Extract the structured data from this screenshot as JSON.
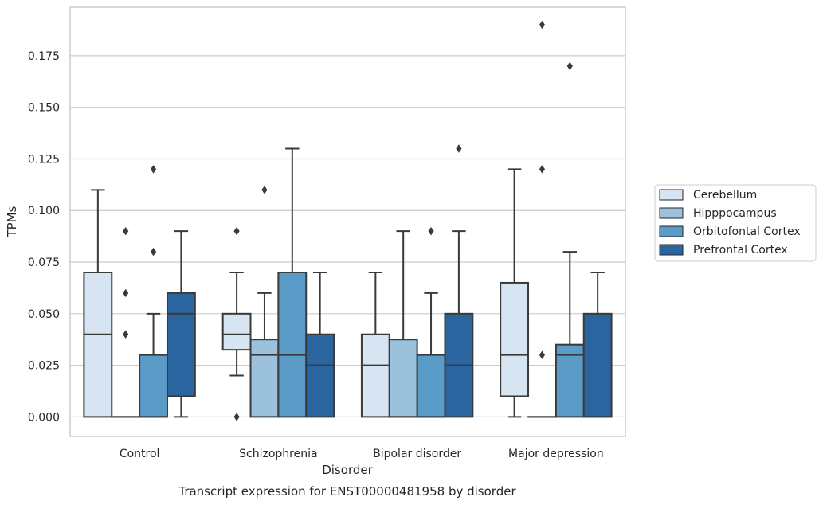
{
  "chart_data": {
    "type": "box",
    "caption": "Transcript expression for ENST00000481958 by disorder",
    "xlabel": "Disorder",
    "ylabel": "TPMs",
    "ylim": [
      -0.0095,
      0.1985
    ],
    "yticks": [
      0.0,
      0.025,
      0.05,
      0.075,
      0.1,
      0.125,
      0.15,
      0.175
    ],
    "ytick_labels": [
      "0.000",
      "0.025",
      "0.050",
      "0.075",
      "0.100",
      "0.125",
      "0.150",
      "0.175"
    ],
    "grid": "horizontal",
    "legend_position": "right",
    "categories": [
      "Control",
      "Schizophrenia",
      "Bipolar disorder",
      "Major depression"
    ],
    "series": [
      {
        "name": "Cerebellum",
        "color": "#d7e5f3",
        "boxes": [
          {
            "whislo": 0.0,
            "q1": 0.0,
            "med": 0.04,
            "q3": 0.07,
            "whishi": 0.11,
            "fliers": []
          },
          {
            "whislo": 0.02,
            "q1": 0.0325,
            "med": 0.04,
            "q3": 0.05,
            "whishi": 0.07,
            "fliers": [
              0.0,
              0.09
            ]
          },
          {
            "whislo": 0.0,
            "q1": 0.0,
            "med": 0.025,
            "q3": 0.04,
            "whishi": 0.07,
            "fliers": []
          },
          {
            "whislo": 0.0,
            "q1": 0.01,
            "med": 0.03,
            "q3": 0.065,
            "whishi": 0.12,
            "fliers": []
          }
        ]
      },
      {
        "name": "Hipppocampus",
        "color": "#9bc1dc",
        "boxes": [
          {
            "whislo": 0.0,
            "q1": 0.0,
            "med": 0.0,
            "q3": 0.0,
            "whishi": 0.0,
            "fliers": [
              0.04,
              0.06,
              0.09
            ]
          },
          {
            "whislo": 0.0,
            "q1": 0.0,
            "med": 0.03,
            "q3": 0.0375,
            "whishi": 0.06,
            "fliers": [
              0.11
            ]
          },
          {
            "whislo": 0.0,
            "q1": 0.0,
            "med": 0.0,
            "q3": 0.0375,
            "whishi": 0.09,
            "fliers": []
          },
          {
            "whislo": 0.0,
            "q1": 0.0,
            "med": 0.0,
            "q3": 0.0,
            "whishi": 0.0,
            "fliers": [
              0.03,
              0.12,
              0.19
            ]
          }
        ]
      },
      {
        "name": "Orbitofontal Cortex",
        "color": "#5b9bc8",
        "boxes": [
          {
            "whislo": 0.0,
            "q1": 0.0,
            "med": 0.0,
            "q3": 0.03,
            "whishi": 0.05,
            "fliers": [
              0.08,
              0.12
            ]
          },
          {
            "whislo": 0.0,
            "q1": 0.0,
            "med": 0.03,
            "q3": 0.07,
            "whishi": 0.13,
            "fliers": []
          },
          {
            "whislo": 0.0,
            "q1": 0.0,
            "med": 0.0,
            "q3": 0.03,
            "whishi": 0.06,
            "fliers": [
              0.09
            ]
          },
          {
            "whislo": 0.0,
            "q1": 0.0,
            "med": 0.03,
            "q3": 0.035,
            "whishi": 0.08,
            "fliers": [
              0.17
            ]
          }
        ]
      },
      {
        "name": "Prefrontal Cortex",
        "color": "#2a65a0",
        "boxes": [
          {
            "whislo": 0.0,
            "q1": 0.01,
            "med": 0.05,
            "q3": 0.06,
            "whishi": 0.09,
            "fliers": []
          },
          {
            "whislo": 0.0,
            "q1": 0.0,
            "med": 0.025,
            "q3": 0.04,
            "whishi": 0.07,
            "fliers": []
          },
          {
            "whislo": 0.0,
            "q1": 0.0,
            "med": 0.025,
            "q3": 0.05,
            "whishi": 0.09,
            "fliers": [
              0.13
            ]
          },
          {
            "whislo": 0.0,
            "q1": 0.0,
            "med": 0.0,
            "q3": 0.05,
            "whishi": 0.07,
            "fliers": []
          }
        ]
      }
    ]
  }
}
